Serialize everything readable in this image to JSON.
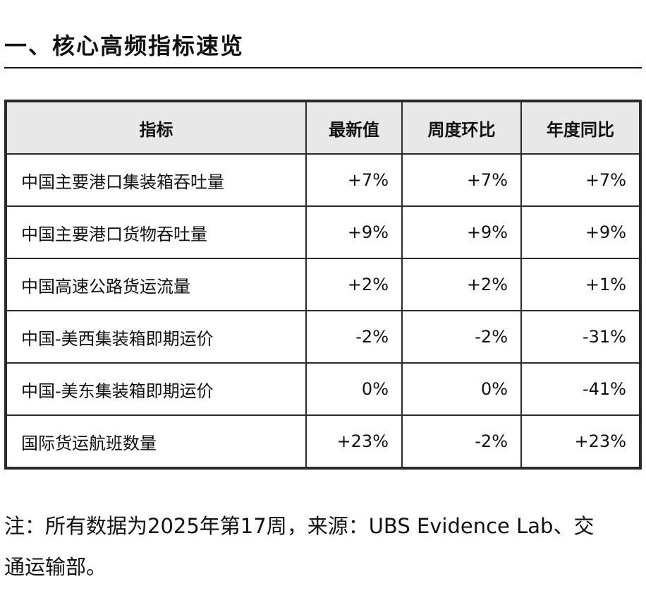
{
  "section": {
    "heading": "一、核心高频指标速览"
  },
  "table": {
    "headers": {
      "indicator": "指标",
      "latest": "最新值",
      "wow": "周度环比",
      "yoy": "年度同比"
    },
    "rows": [
      {
        "indicator": "中国主要港口集装箱吞吐量",
        "latest": "+7%",
        "wow": "+7%",
        "yoy": "+7%"
      },
      {
        "indicator": "中国主要港口货物吞吐量",
        "latest": "+9%",
        "wow": "+9%",
        "yoy": "+9%"
      },
      {
        "indicator": "中国高速公路货运流量",
        "latest": "+2%",
        "wow": "+2%",
        "yoy": "+1%"
      },
      {
        "indicator": "中国-美西集装箱即期运价",
        "latest": "-2%",
        "wow": "-2%",
        "yoy": "-31%"
      },
      {
        "indicator": "中国-美东集装箱即期运价",
        "latest": "0%",
        "wow": "0%",
        "yoy": "-41%"
      },
      {
        "indicator": "国际货运航班数量",
        "latest": "+23%",
        "wow": "-2%",
        "yoy": "+23%"
      }
    ]
  },
  "note": {
    "text": "注：所有数据为2025年第17周，来源：UBS Evidence Lab、交通运输部。"
  }
}
